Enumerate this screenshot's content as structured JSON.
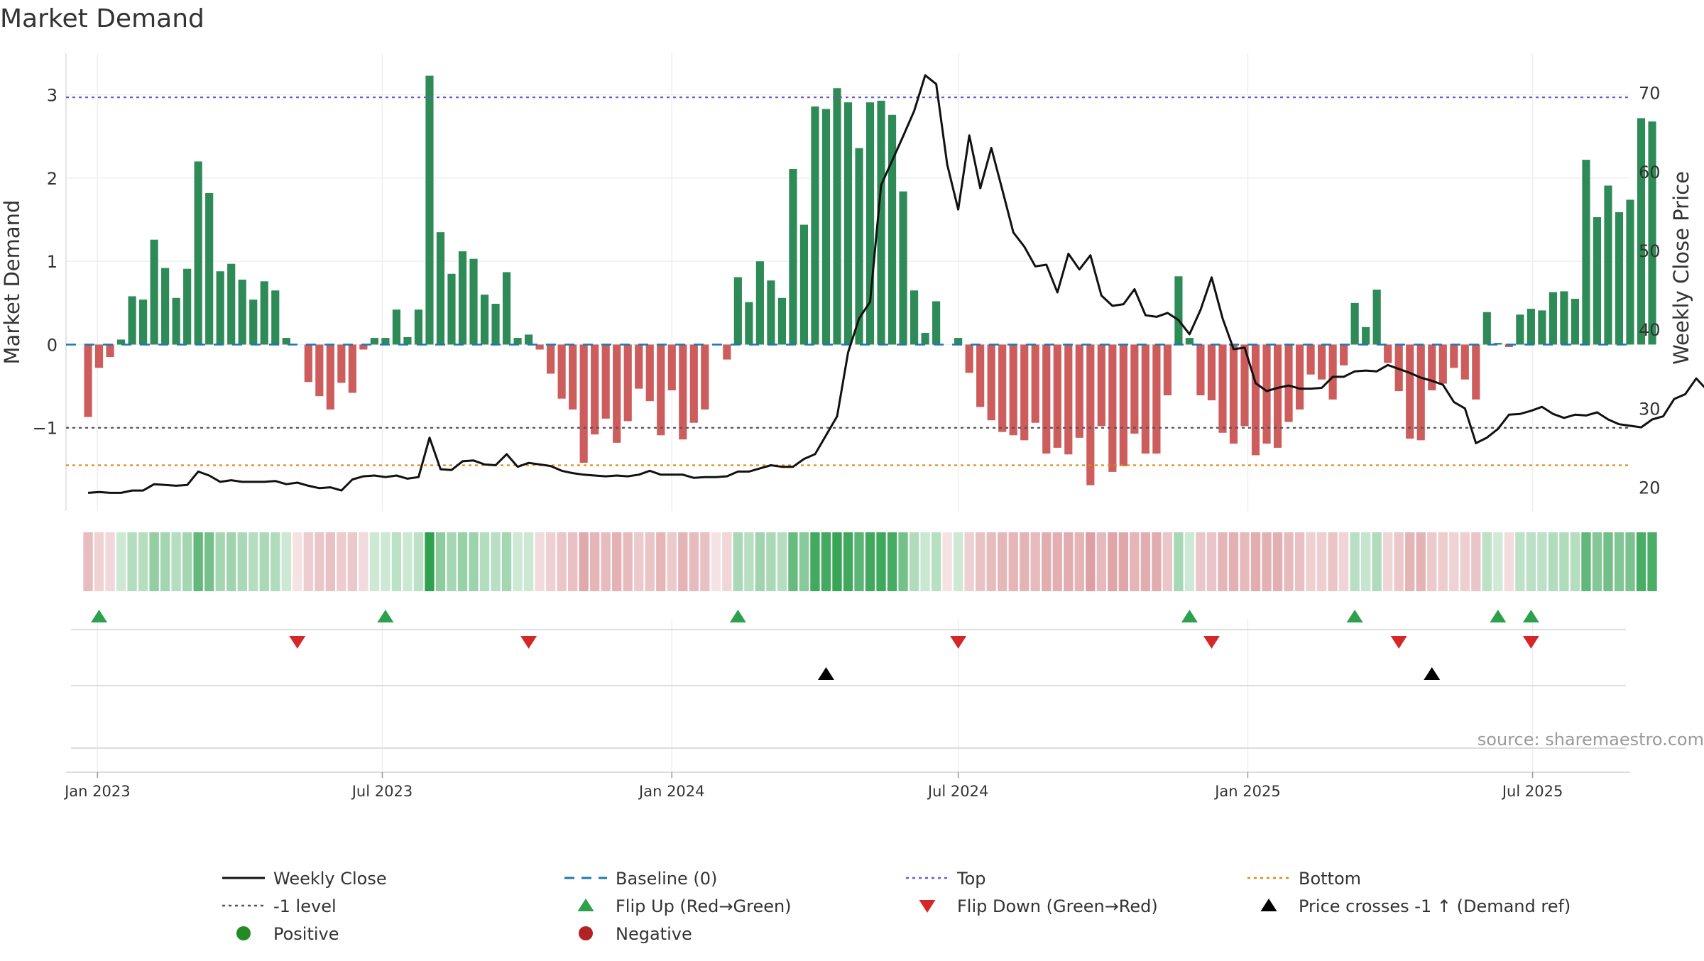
{
  "chart_data": {
    "type": "bar",
    "title": "Market Demand",
    "ylabel": "Market Demand",
    "y2label": "Weekly Close Price",
    "ylim": [
      -2.0,
      3.5
    ],
    "y2lim": [
      17,
      75
    ],
    "xlim": [
      "2022-12-12",
      "2025-09-01"
    ],
    "y_ticks": [
      {
        "value": 3,
        "label": "3"
      },
      {
        "value": 2,
        "label": "2"
      },
      {
        "value": 1,
        "label": "1"
      },
      {
        "value": 0,
        "label": "0"
      },
      {
        "value": -1,
        "label": "−1"
      }
    ],
    "y2_ticks": [
      {
        "value": 70,
        "label": "70"
      },
      {
        "value": 60,
        "label": "60"
      },
      {
        "value": 50,
        "label": "50"
      },
      {
        "value": 40,
        "label": "40"
      },
      {
        "value": 30,
        "label": "30"
      },
      {
        "value": 20,
        "label": "20"
      }
    ],
    "x_ticks": [
      {
        "date": "2023-01-01",
        "label": "Jan 2023"
      },
      {
        "date": "2023-07-01",
        "label": "Jul 2023"
      },
      {
        "date": "2024-01-01",
        "label": "Jan 2024"
      },
      {
        "date": "2024-07-01",
        "label": "Jul 2024"
      },
      {
        "date": "2025-01-01",
        "label": "Jan 2025"
      },
      {
        "date": "2025-07-01",
        "label": "Jul 2025"
      }
    ],
    "reference_lines": [
      {
        "name": "Top",
        "value": 2.97,
        "color": "#6a5acd",
        "style": "dotted"
      },
      {
        "name": "-1 level",
        "value": -1,
        "color": "#555555",
        "style": "dotted"
      },
      {
        "name": "Bottom",
        "value": -1.45,
        "color": "#e08c10",
        "style": "dotted"
      },
      {
        "name": "Baseline (0)",
        "value": 0,
        "color": "#1f77b4",
        "style": "dashed"
      }
    ],
    "start_date": "2022-12-26",
    "weekly_demand": [
      -0.87,
      -0.28,
      -0.15,
      0.06,
      0.58,
      0.54,
      1.26,
      0.92,
      0.56,
      0.91,
      2.2,
      1.82,
      0.88,
      0.97,
      0.78,
      0.54,
      0.76,
      0.65,
      0.08,
      0,
      -0.45,
      -0.62,
      -0.78,
      -0.46,
      -0.58,
      -0.06,
      0.08,
      0.08,
      0.42,
      0.09,
      0.42,
      3.23,
      1.35,
      0.85,
      1.12,
      1.03,
      0.6,
      0.49,
      0.87,
      0.08,
      0.12,
      -0.06,
      -0.35,
      -0.65,
      -0.78,
      -1.42,
      -1.08,
      -0.89,
      -1.18,
      -0.92,
      -0.53,
      -0.68,
      -1.09,
      -0.55,
      -1.14,
      -0.94,
      -0.78,
      0,
      -0.18,
      0.81,
      0.51,
      1.0,
      0.77,
      0.56,
      2.11,
      1.44,
      2.86,
      2.83,
      3.08,
      2.91,
      2.36,
      2.91,
      2.93,
      2.76,
      1.84,
      0.65,
      0.14,
      0.52,
      0,
      0.08,
      -0.34,
      -0.75,
      -0.91,
      -1.05,
      -1.09,
      -1.15,
      -0.94,
      -1.31,
      -1.24,
      -1.32,
      -1.12,
      -1.69,
      -0.98,
      -1.53,
      -1.46,
      -1.07,
      -1.31,
      -1.31,
      -0.61,
      0.82,
      0.08,
      -0.61,
      -0.67,
      -1.06,
      -1.19,
      -0.98,
      -1.33,
      -1.19,
      -1.24,
      -0.93,
      -0.78,
      -0.36,
      -0.42,
      -0.66,
      -0.25,
      0.5,
      0.21,
      0.66,
      -0.22,
      -0.56,
      -1.13,
      -1.15,
      -0.55,
      -0.47,
      -0.28,
      -0.42,
      -0.66,
      0.39,
      0.02,
      -0.03,
      0.36,
      0.43,
      0.41,
      0.63,
      0.64,
      0.55,
      2.22,
      1.53,
      1.91,
      1.59,
      1.74,
      2.72,
      2.68
    ],
    "weekly_close": [
      19.3,
      19.4,
      19.3,
      19.3,
      19.6,
      19.6,
      20.4,
      20.3,
      20.2,
      20.3,
      22.0,
      21.5,
      20.7,
      20.9,
      20.7,
      20.7,
      20.7,
      20.8,
      20.4,
      20.6,
      20.2,
      19.9,
      20.0,
      19.6,
      21.0,
      21.4,
      21.5,
      21.3,
      21.5,
      21.1,
      21.3,
      26.3,
      22.3,
      22.2,
      23.3,
      23.4,
      22.9,
      22.8,
      24.2,
      22.6,
      23.1,
      22.9,
      22.7,
      22.1,
      21.8,
      21.6,
      21.5,
      21.4,
      21.5,
      21.4,
      21.6,
      22.1,
      21.6,
      21.6,
      21.6,
      21.2,
      21.3,
      21.3,
      21.4,
      22.0,
      22.0,
      22.4,
      22.8,
      22.6,
      22.6,
      23.6,
      24.2,
      26.6,
      29.0,
      37.1,
      41.4,
      43.5,
      58.3,
      61.4,
      64.5,
      67.7,
      72.2,
      71.1,
      60.9,
      55.2,
      64.6,
      57.9,
      63.0,
      57.7,
      52.3,
      50.5,
      48.0,
      48.2,
      44.7,
      49.6,
      47.6,
      49.4,
      44.3,
      43.0,
      43.2,
      45.1,
      41.8,
      41.6,
      42.1,
      41.2,
      39.4,
      42.5,
      46.6,
      41.4,
      37.5,
      37.7,
      33.2,
      32.2,
      32.6,
      32.9,
      32.5,
      32.5,
      32.6,
      34.0,
      34.0,
      34.7,
      34.8,
      34.7,
      35.5,
      35.0,
      34.5,
      33.9,
      33.5,
      33.0,
      30.8,
      30.0,
      25.6,
      26.3,
      27.4,
      29.2,
      29.3,
      29.7,
      30.2,
      29.3,
      28.8,
      29.2,
      29.1,
      29.5,
      28.6,
      28.0,
      27.8,
      27.6,
      28.6,
      29.0,
      31.2,
      31.8,
      33.8,
      32.3,
      33.3,
      38.1,
      38.8
    ],
    "flip_up_weeks": [
      1,
      27,
      59,
      100,
      115,
      128,
      131
    ],
    "flip_down_weeks": [
      19,
      40,
      79,
      102,
      119,
      131
    ],
    "price_cross_weeks": [
      67,
      122
    ],
    "legend": [
      {
        "label": "Weekly Close",
        "marker": "line",
        "color": "#111111"
      },
      {
        "label": "Baseline (0)",
        "marker": "dashed",
        "color": "#1f77b4"
      },
      {
        "label": "Top",
        "marker": "dotted",
        "color": "#6a5acd"
      },
      {
        "label": "Bottom",
        "marker": "dotted",
        "color": "#e08c10"
      },
      {
        "label": "-1 level",
        "marker": "dotted",
        "color": "#555555"
      },
      {
        "label": "Flip Up (Red→Green)",
        "marker": "triangle-up",
        "color": "#2ca04c"
      },
      {
        "label": "Flip Down (Green→Red)",
        "marker": "triangle-down",
        "color": "#d62728"
      },
      {
        "label": "Price crosses -1 ↑ (Demand ref)",
        "marker": "triangle-up",
        "color": "#000000"
      },
      {
        "label": "Positive",
        "marker": "dot",
        "color": "#228b22"
      },
      {
        "label": "Negative",
        "marker": "dot",
        "color": "#b22222"
      }
    ],
    "legend_position": "bottom",
    "grid": true,
    "annotation": "source: sharemaestro.com",
    "colors": {
      "positive_bar": "#2e8b57",
      "negative_bar": "#cd5c5c",
      "price_line": "#111111",
      "heat_positive": "#2ca04c",
      "heat_negative": "#c8646a"
    }
  }
}
